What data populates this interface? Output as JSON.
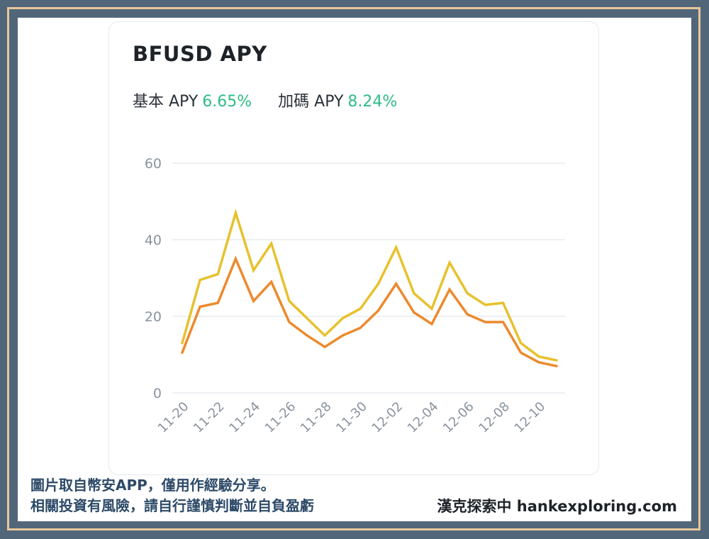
{
  "title": "BFUSD APY",
  "apy": [
    {
      "label": "基本 APY",
      "value": "6.65%"
    },
    {
      "label": "加碼 APY",
      "value": "8.24%"
    }
  ],
  "colors": {
    "base_line": "#ec8a2e",
    "bonus_line": "#e8c12c",
    "apy_value": "#2ebd85",
    "grid": "#e9ecef",
    "tick": "#8a939e"
  },
  "chart_data": {
    "type": "line",
    "ylim": [
      0,
      60
    ],
    "yticks": [
      "0",
      "20",
      "40",
      "60"
    ],
    "grid": true,
    "x_dates": [
      "11-20",
      "11-21",
      "11-22",
      "11-23",
      "11-24",
      "11-25",
      "11-26",
      "11-27",
      "11-28",
      "11-29",
      "11-30",
      "12-01",
      "12-02",
      "12-03",
      "12-04",
      "12-05",
      "12-06",
      "12-07",
      "12-08",
      "12-09",
      "12-10",
      "12-11"
    ],
    "xticks": [
      "11-20",
      "11-22",
      "11-24",
      "11-26",
      "11-28",
      "11-30",
      "12-02",
      "12-04",
      "12-06",
      "12-08",
      "12-10"
    ],
    "series": [
      {
        "values": [
          13,
          29.5,
          31,
          47,
          32,
          39,
          24,
          19.5,
          15,
          19.5,
          22,
          28.5,
          38,
          26,
          22,
          34,
          26,
          23,
          23.5,
          13,
          9.5,
          8.5
        ]
      },
      {
        "values": [
          10.5,
          22.5,
          23.5,
          35,
          24,
          29,
          18.5,
          15,
          12,
          15,
          17,
          21.5,
          28.5,
          21,
          18,
          27,
          20.5,
          18.5,
          18.5,
          10.5,
          8,
          7
        ]
      }
    ]
  },
  "footer": {
    "line1": "圖片取自幣安APP，僅用作經驗分享。",
    "line2": "相關投資有風險，請自行謹慎判斷並自負盈虧",
    "brand": "漢克探索中 hankexploring.com"
  }
}
